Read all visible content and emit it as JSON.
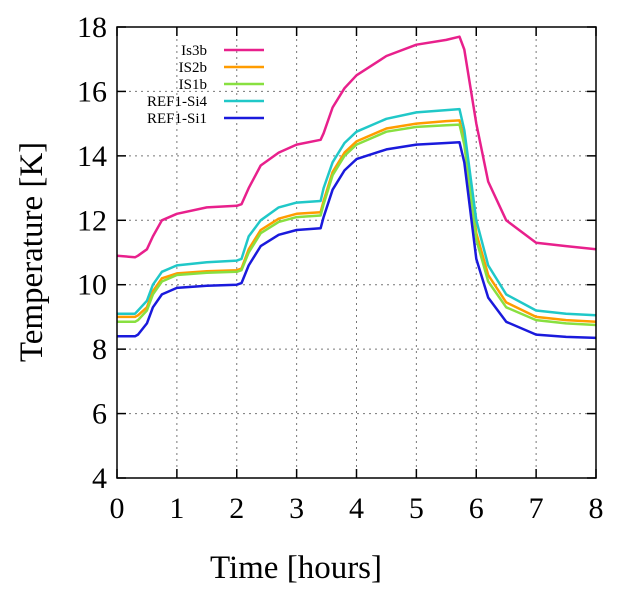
{
  "chart_data": {
    "type": "line",
    "x_label": "Time [hours]",
    "y_label": "Temperature [K]",
    "x": [
      0,
      0.3,
      0.35,
      0.5,
      0.6,
      0.75,
      1,
      1.5,
      2,
      2.08,
      2.2,
      2.4,
      2.7,
      3,
      3.4,
      3.45,
      3.6,
      3.8,
      4,
      4.5,
      5,
      5.5,
      5.72,
      5.8,
      6,
      6.2,
      6.5,
      7,
      7.5,
      8
    ],
    "series": [
      {
        "name": "Is3b",
        "color": "#e8208c",
        "values": [
          10.9,
          10.85,
          10.9,
          11.1,
          11.5,
          12.0,
          12.2,
          12.4,
          12.45,
          12.5,
          13.0,
          13.7,
          14.1,
          14.35,
          14.5,
          14.7,
          15.5,
          16.1,
          16.5,
          17.1,
          17.45,
          17.6,
          17.7,
          17.3,
          15.0,
          13.2,
          12.0,
          11.3,
          11.2,
          11.1
        ]
      },
      {
        "name": "IS2b",
        "color": "#ff9c00",
        "values": [
          9.0,
          9.0,
          9.05,
          9.3,
          9.8,
          10.2,
          10.35,
          10.42,
          10.45,
          10.5,
          11.1,
          11.7,
          12.05,
          12.2,
          12.25,
          12.6,
          13.5,
          14.1,
          14.45,
          14.85,
          15.0,
          15.08,
          15.1,
          14.5,
          11.6,
          10.3,
          9.45,
          9.0,
          8.9,
          8.85
        ]
      },
      {
        "name": "IS1b",
        "color": "#88e040",
        "values": [
          8.85,
          8.85,
          8.9,
          9.2,
          9.7,
          10.1,
          10.3,
          10.37,
          10.4,
          10.45,
          11.0,
          11.6,
          11.95,
          12.1,
          12.15,
          12.5,
          13.4,
          14.0,
          14.35,
          14.75,
          14.9,
          14.95,
          14.97,
          14.35,
          11.4,
          10.1,
          9.3,
          8.9,
          8.8,
          8.75
        ]
      },
      {
        "name": "REF1-Si4",
        "color": "#20c8c8",
        "values": [
          9.1,
          9.1,
          9.2,
          9.5,
          10.0,
          10.4,
          10.6,
          10.7,
          10.75,
          10.8,
          11.5,
          12.0,
          12.4,
          12.55,
          12.6,
          13.0,
          13.8,
          14.4,
          14.75,
          15.15,
          15.35,
          15.42,
          15.45,
          14.8,
          12.0,
          10.6,
          9.7,
          9.2,
          9.1,
          9.05
        ]
      },
      {
        "name": "REF1-Si1",
        "color": "#1a1adc",
        "values": [
          8.4,
          8.4,
          8.45,
          8.8,
          9.3,
          9.7,
          9.9,
          9.97,
          10.0,
          10.05,
          10.6,
          11.2,
          11.55,
          11.7,
          11.75,
          12.1,
          12.95,
          13.55,
          13.9,
          14.2,
          14.35,
          14.4,
          14.42,
          13.8,
          10.8,
          9.6,
          8.85,
          8.45,
          8.38,
          8.35
        ]
      }
    ],
    "xlim": [
      0,
      8
    ],
    "xticks": [
      0,
      1,
      2,
      3,
      4,
      5,
      6,
      7,
      8
    ],
    "ylim": [
      4,
      18
    ],
    "yticks": [
      4,
      6,
      8,
      10,
      12,
      14,
      16,
      18
    ],
    "grid": true,
    "legend": "top-left"
  }
}
